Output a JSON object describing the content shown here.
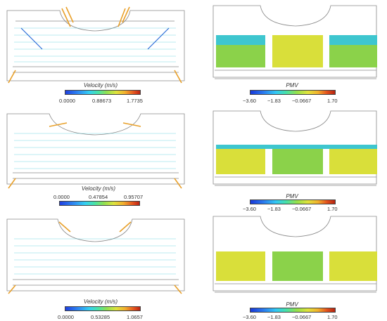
{
  "colors": {
    "outline": "#8a8a8a",
    "vector": "#3fc7d9",
    "vector_fast": "#e8a02a",
    "pmv_green": "#8bd24a",
    "pmv_yellow": "#d9df3a",
    "pmv_cyan": "#3ec6cf"
  },
  "rows": [
    {
      "velocity": {
        "title": "Velocity (m/s)",
        "ticks": [
          "0.0000",
          "0.88673",
          "1.7735"
        ]
      },
      "pmv": {
        "title": "PMV",
        "ticks": [
          "−3.60",
          "−1.83",
          "−0.0667",
          "1.70"
        ]
      }
    },
    {
      "velocity": {
        "title": "Velocity (m/s)",
        "ticks": [
          "0.0000",
          "0.47854",
          "0.95707"
        ]
      },
      "pmv": {
        "title": "PMV",
        "ticks": [
          "−3.60",
          "−1.83",
          "−0.0667",
          "1.70"
        ]
      }
    },
    {
      "velocity": {
        "title": "Velocity (m/s)",
        "ticks": [
          "0.0000",
          "0.53285",
          "1.0657"
        ]
      },
      "pmv": {
        "title": "PMV",
        "ticks": [
          "−3.60",
          "−1.83",
          "−0.0667",
          "1.70"
        ]
      }
    }
  ]
}
